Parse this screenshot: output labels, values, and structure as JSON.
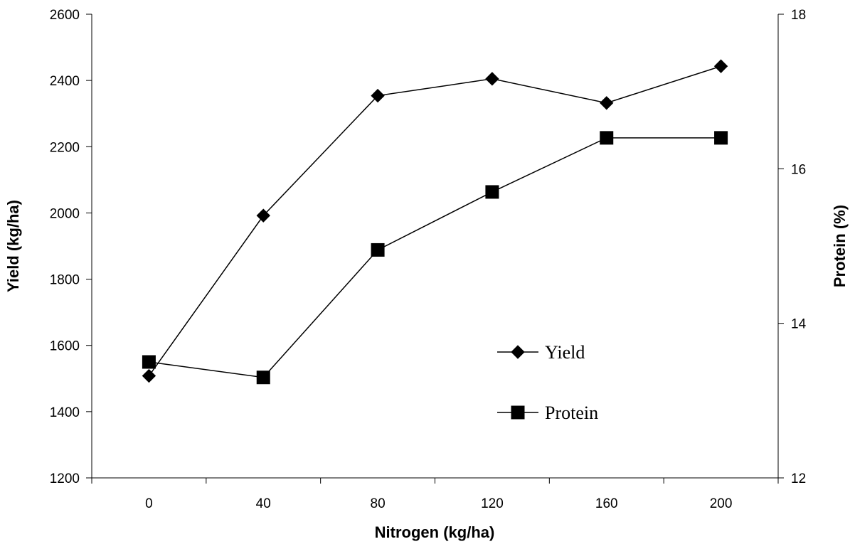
{
  "chart_data": {
    "type": "line",
    "title": "",
    "xlabel": "Nitrogen (kg/ha)",
    "ylabel": "Yield (kg/ha)",
    "y2label": "Protein (%)",
    "x": [
      0,
      40,
      80,
      120,
      160,
      200
    ],
    "x_tick_labels": [
      "0",
      "40",
      "80",
      "120",
      "160",
      "200"
    ],
    "ylim": [
      1200,
      2600
    ],
    "y_ticks": [
      1200,
      1400,
      1600,
      1800,
      2000,
      2200,
      2400,
      2600
    ],
    "y2lim": [
      12,
      18
    ],
    "y2_ticks": [
      12,
      14,
      16,
      18
    ],
    "grid": false,
    "legend_position": "center-right",
    "series": [
      {
        "name": "Yield",
        "axis": "left",
        "marker": "diamond",
        "values": [
          1508,
          1992,
          2354,
          2405,
          2332,
          2443
        ]
      },
      {
        "name": "Protein",
        "axis": "right",
        "marker": "square",
        "values": [
          13.5,
          13.3,
          14.95,
          15.7,
          16.4,
          16.4
        ]
      }
    ],
    "colors": {
      "line": "#000000",
      "marker": "#000000",
      "background": "#ffffff"
    }
  }
}
